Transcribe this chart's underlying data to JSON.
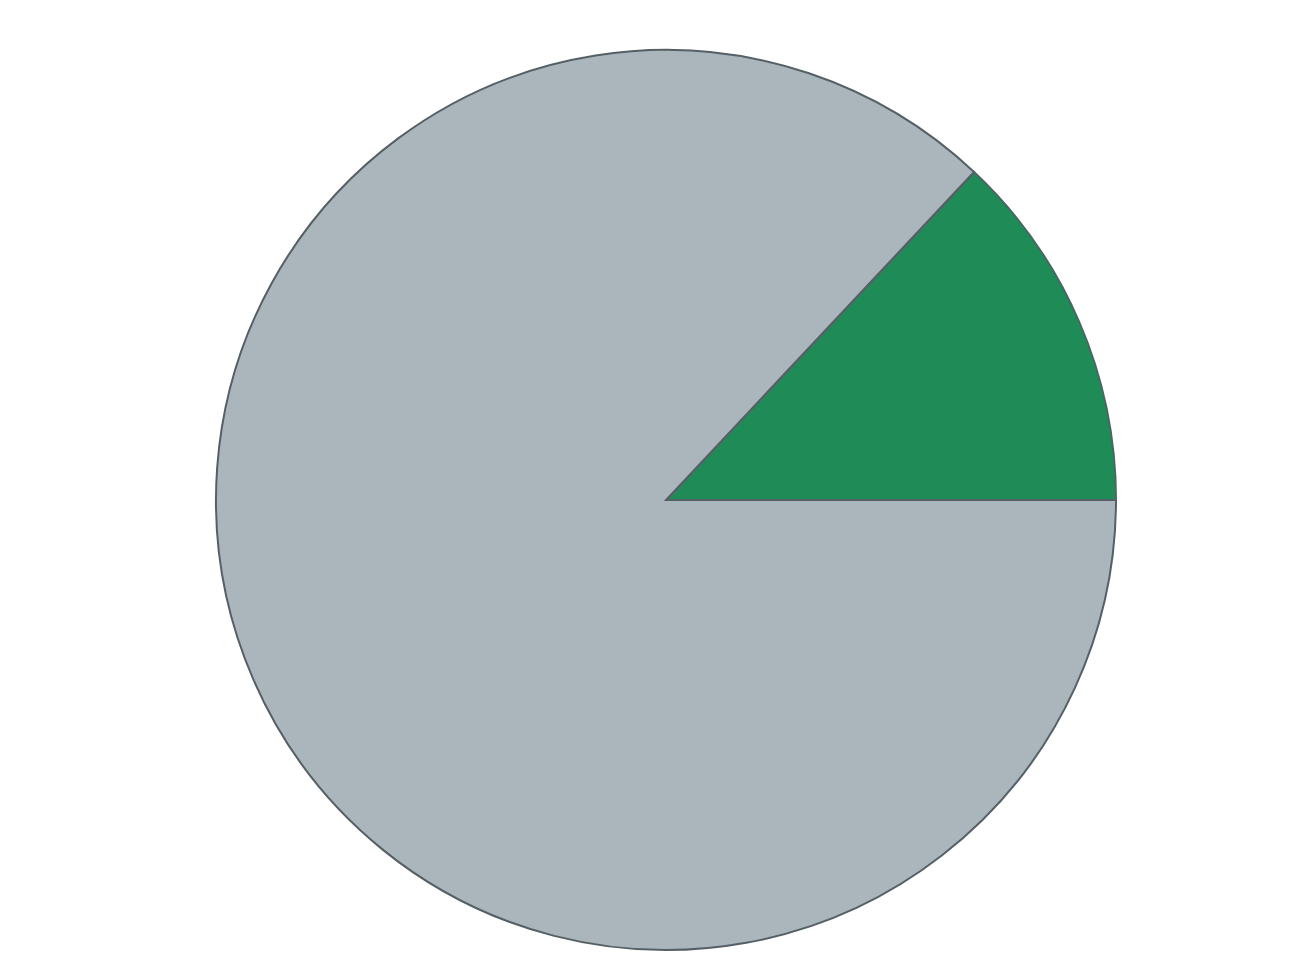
{
  "chart_data": {
    "type": "pie",
    "categories": [
      null,
      null
    ],
    "values": [
      13,
      87
    ],
    "colors": [
      "#1f8c58",
      "#aab6bc"
    ]
  }
}
